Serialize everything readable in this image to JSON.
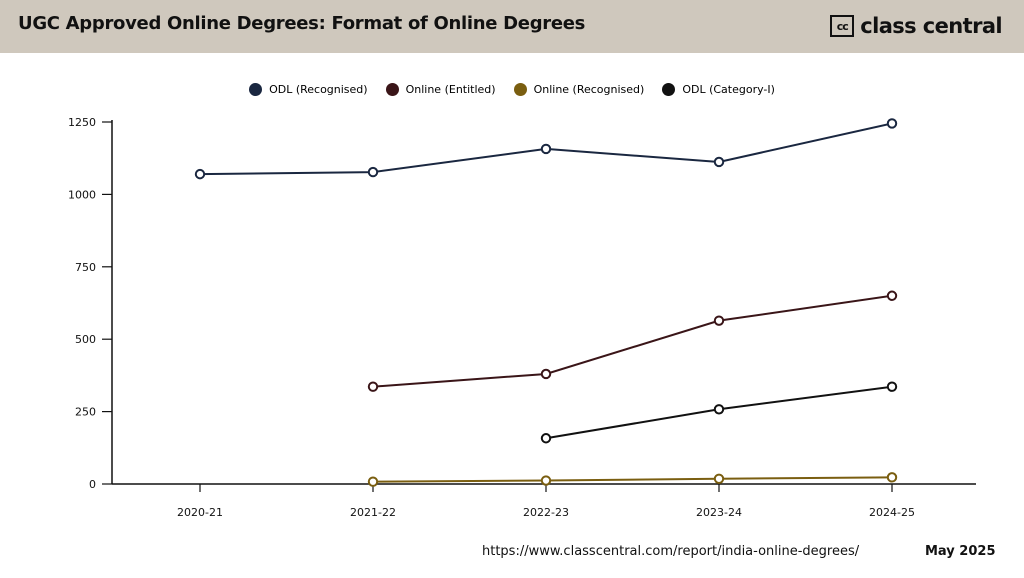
{
  "header": {
    "title": "UGC Approved Online Degrees: Format of Online Degrees",
    "brand_icon_text": "cc",
    "brand_name": "class central"
  },
  "footer": {
    "url": "https://www.classcentral.com/report/india-online-degrees/",
    "date": "May 2025"
  },
  "chart_data": {
    "type": "line",
    "title": "UGC Approved Online Degrees: Format of Online Degrees",
    "xlabel": "",
    "ylabel": "",
    "categories": [
      "2020-21",
      "2021-22",
      "2022-23",
      "2023-24",
      "2024-25"
    ],
    "ylim": [
      0,
      1250
    ],
    "yticks": [
      0,
      250,
      500,
      750,
      1000,
      1250
    ],
    "legend_position": "top-center",
    "grid": false,
    "series": [
      {
        "name": "ODL (Recognised)",
        "color": "#1a2740",
        "values": [
          1070,
          1077,
          1157,
          1112,
          1245
        ]
      },
      {
        "name": "Online (Entitled)",
        "color": "#3a1518",
        "values": [
          null,
          336,
          380,
          564,
          650
        ]
      },
      {
        "name": "Online (Recognised)",
        "color": "#7a5e10",
        "values": [
          null,
          8,
          12,
          18,
          23
        ]
      },
      {
        "name": "ODL (Category-I)",
        "color": "#111111",
        "values": [
          null,
          null,
          158,
          258,
          336
        ]
      }
    ]
  }
}
